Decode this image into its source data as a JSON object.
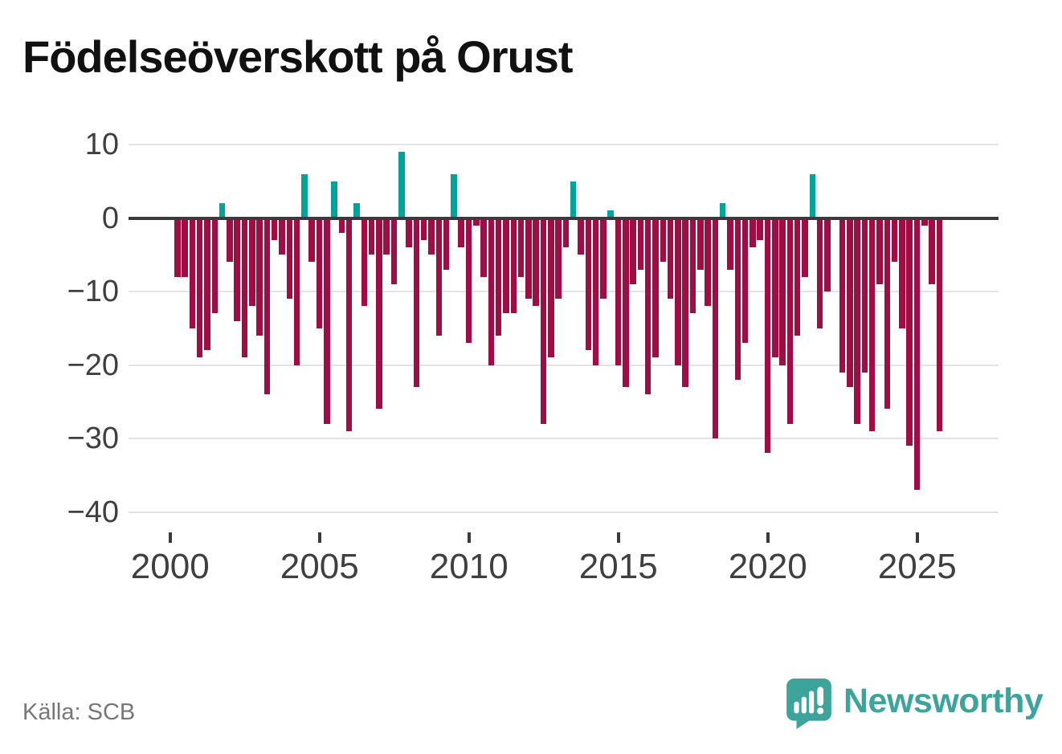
{
  "title": "Födelseöverskott på Orust",
  "source": {
    "label": "Källa: SCB"
  },
  "brand": {
    "name": "Newsworthy"
  },
  "colors": {
    "positive": "#00a39a",
    "negative": "#a00d45",
    "zero_line": "#3a3a3a",
    "gridline": "#e3e3e3",
    "axis_text": "#3f3f3f",
    "title_text": "#111111",
    "source_text": "#777777",
    "brand_teal": "#3da49b"
  },
  "chart_data": {
    "type": "bar",
    "title": "Födelseöverskott på Orust",
    "xlabel": "",
    "ylabel": "",
    "frequency": "quarterly",
    "start": "2000-Q1",
    "end": "2025-Q3",
    "ylim": [
      -40,
      10
    ],
    "grid": true,
    "y_ticks": [
      10,
      0,
      -10,
      -20,
      -30,
      -40
    ],
    "y_tick_labels": [
      "10",
      "0",
      "−10",
      "−20",
      "−30",
      "−40"
    ],
    "x_ticks": [
      {
        "label": "2000",
        "index": 0
      },
      {
        "label": "2005",
        "index": 20
      },
      {
        "label": "2010",
        "index": 40
      },
      {
        "label": "2015",
        "index": 60
      },
      {
        "label": "2020",
        "index": 80
      },
      {
        "label": "2025",
        "index": 100
      }
    ],
    "values_by_year": {
      "2000": [
        -8,
        -8,
        -15,
        -19
      ],
      "2001": [
        -18,
        -13,
        2,
        -6
      ],
      "2002": [
        -14,
        -19,
        -12,
        -16
      ],
      "2003": [
        -24,
        -3,
        -5,
        -11
      ],
      "2004": [
        -20,
        6,
        -6,
        -15
      ],
      "2005": [
        -28,
        5,
        -2,
        -29
      ],
      "2006": [
        2,
        -12,
        -5,
        -26
      ],
      "2007": [
        -5,
        -9,
        9,
        -4
      ],
      "2008": [
        -23,
        -3,
        -5,
        -16
      ],
      "2009": [
        -7,
        6,
        -4,
        -17
      ],
      "2010": [
        -1,
        -8,
        -20,
        -16
      ],
      "2011": [
        -13,
        -13,
        -8,
        -11
      ],
      "2012": [
        -12,
        -28,
        -19,
        -11
      ],
      "2013": [
        -4,
        5,
        -5,
        -18
      ],
      "2014": [
        -20,
        -11,
        1,
        -20
      ],
      "2015": [
        -23,
        -9,
        -7,
        -24
      ],
      "2016": [
        -19,
        -6,
        -11,
        -20
      ],
      "2017": [
        -23,
        -13,
        -7,
        -12
      ],
      "2018": [
        -30,
        2,
        -7,
        -22
      ],
      "2019": [
        -17,
        -4,
        -3,
        -32
      ],
      "2020": [
        -19,
        -20,
        -28,
        -16
      ],
      "2021": [
        -8,
        6,
        -15,
        -10
      ],
      "2022": [
        0,
        -21,
        -23,
        -28
      ],
      "2023": [
        -21,
        -29,
        -9,
        -26
      ],
      "2024": [
        -6,
        -15,
        -31,
        -37
      ],
      "2025": [
        -1,
        -9,
        -29
      ]
    }
  }
}
